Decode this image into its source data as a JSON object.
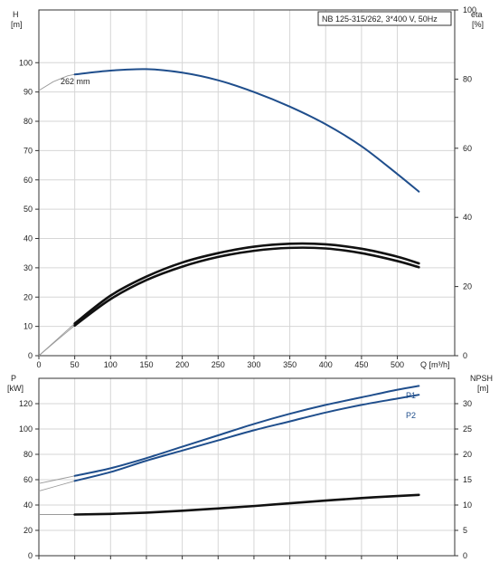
{
  "chart_data": [
    {
      "type": "line",
      "title": "NB 125-315/262, 3*400 V, 50Hz",
      "xlabel": "Q [m³/h]",
      "ylabel_left_symbol": "H",
      "ylabel_left_unit": "[m]",
      "ylabel_right_symbol": "eta",
      "ylabel_right_unit": "[%]",
      "xlim": [
        0,
        580
      ],
      "ylim_left": [
        0,
        118
      ],
      "ylim_right": [
        0,
        100
      ],
      "x_ticks": [
        0,
        50,
        100,
        150,
        200,
        250,
        300,
        350,
        400,
        450,
        500
      ],
      "y_ticks_left": [
        0,
        10,
        20,
        30,
        40,
        50,
        60,
        70,
        80,
        90,
        100
      ],
      "y_ticks_right": [
        0,
        20,
        40,
        60,
        80,
        100
      ],
      "grid": true,
      "annotations": [
        {
          "text": "262 mm",
          "x": 32,
          "y": 95.5
        }
      ],
      "series": [
        {
          "axis": "left",
          "color": "#1f4e8c",
          "x": [
            50,
            100,
            150,
            200,
            250,
            300,
            350,
            400,
            450,
            500,
            530
          ],
          "y": [
            96.0,
            97.3,
            97.8,
            96.6,
            94.0,
            90.0,
            85.0,
            79.0,
            71.5,
            62.0,
            56.0
          ],
          "extension_x": [
            0,
            20,
            40,
            50
          ],
          "extension_y": [
            90.5,
            93.5,
            95.5,
            96.0
          ]
        },
        {
          "axis": "left",
          "color": "#111111",
          "x": [
            50,
            100,
            150,
            200,
            250,
            300,
            350,
            400,
            450,
            500,
            530
          ],
          "y": [
            11.0,
            20.5,
            27.0,
            31.8,
            35.0,
            37.2,
            38.2,
            38.0,
            36.5,
            33.8,
            31.5
          ],
          "extension_x": [
            0,
            25,
            50
          ],
          "extension_y": [
            0,
            5.5,
            11.0
          ]
        },
        {
          "axis": "left",
          "color": "#111111",
          "x": [
            50,
            100,
            150,
            200,
            250,
            300,
            350,
            400,
            450,
            500,
            530
          ],
          "y": [
            10.3,
            19.3,
            25.8,
            30.4,
            33.7,
            35.8,
            36.8,
            36.6,
            35.0,
            32.3,
            30.2
          ],
          "extension_x": [
            0,
            25,
            50
          ],
          "extension_y": [
            0,
            5.2,
            10.3
          ]
        }
      ]
    },
    {
      "type": "line",
      "ylabel_left_symbol": "P",
      "ylabel_left_unit": "[kW]",
      "ylabel_right_symbol": "NPSH",
      "ylabel_right_unit": "[m]",
      "xlim": [
        0,
        580
      ],
      "ylim_left": [
        0,
        140
      ],
      "ylim_right": [
        0,
        35
      ],
      "y_ticks_left": [
        0,
        20,
        40,
        60,
        80,
        100,
        120
      ],
      "y_ticks_right": [
        0,
        5,
        10,
        15,
        20,
        25,
        30
      ],
      "grid": true,
      "series": [
        {
          "name": "P1",
          "axis": "left",
          "color": "#1f4e8c",
          "x": [
            50,
            100,
            150,
            200,
            250,
            300,
            350,
            400,
            450,
            500,
            530
          ],
          "y": [
            63,
            69,
            77,
            86,
            95,
            104,
            112,
            119,
            125,
            131,
            134
          ],
          "extension_x": [
            0,
            25,
            50
          ],
          "extension_y": [
            57,
            60,
            63
          ]
        },
        {
          "name": "P2",
          "axis": "left",
          "color": "#1f4e8c",
          "x": [
            50,
            100,
            150,
            200,
            250,
            300,
            350,
            400,
            450,
            500,
            530
          ],
          "y": [
            59,
            66,
            75,
            83,
            91,
            99,
            106,
            113,
            119,
            124,
            127
          ],
          "extension_x": [
            0,
            25,
            50
          ],
          "extension_y": [
            51,
            55,
            59
          ]
        },
        {
          "axis": "left",
          "color": "#111111",
          "x": [
            50,
            100,
            150,
            200,
            250,
            300,
            350,
            400,
            450,
            500,
            530
          ],
          "y": [
            32.5,
            33.0,
            34.0,
            35.5,
            37.3,
            39.2,
            41.4,
            43.5,
            45.5,
            47.1,
            48.0
          ],
          "extension_x": [
            0,
            50
          ],
          "extension_y": [
            32.5,
            32.5
          ]
        }
      ]
    }
  ]
}
